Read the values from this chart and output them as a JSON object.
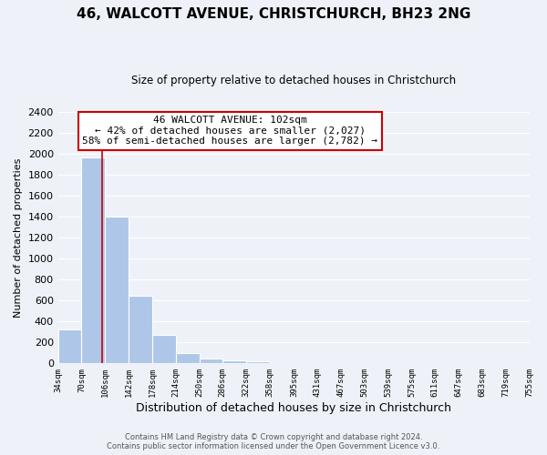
{
  "title": "46, WALCOTT AVENUE, CHRISTCHURCH, BH23 2NG",
  "subtitle": "Size of property relative to detached houses in Christchurch",
  "xlabel": "Distribution of detached houses by size in Christchurch",
  "ylabel": "Number of detached properties",
  "bar_edges": [
    34,
    70,
    106,
    142,
    178,
    214,
    250,
    286,
    322,
    358,
    395,
    431,
    467,
    503,
    539,
    575,
    611,
    647,
    683,
    719,
    755
  ],
  "bar_heights": [
    320,
    1970,
    1400,
    650,
    275,
    100,
    45,
    30,
    20,
    0,
    0,
    0,
    0,
    0,
    0,
    0,
    0,
    0,
    0,
    0
  ],
  "bar_color": "#aec6e8",
  "property_line_x": 102,
  "property_line_color": "#cc0000",
  "annotation_line1": "46 WALCOTT AVENUE: 102sqm",
  "annotation_line2": "← 42% of detached houses are smaller (2,027)",
  "annotation_line3": "58% of semi-detached houses are larger (2,782) →",
  "annotation_box_color": "white",
  "annotation_box_edge": "#cc0000",
  "ylim": [
    0,
    2400
  ],
  "yticks": [
    0,
    200,
    400,
    600,
    800,
    1000,
    1200,
    1400,
    1600,
    1800,
    2000,
    2200,
    2400
  ],
  "xtick_labels": [
    "34sqm",
    "70sqm",
    "106sqm",
    "142sqm",
    "178sqm",
    "214sqm",
    "250sqm",
    "286sqm",
    "322sqm",
    "358sqm",
    "395sqm",
    "431sqm",
    "467sqm",
    "503sqm",
    "539sqm",
    "575sqm",
    "611sqm",
    "647sqm",
    "683sqm",
    "719sqm",
    "755sqm"
  ],
  "footer_line1": "Contains HM Land Registry data © Crown copyright and database right 2024.",
  "footer_line2": "Contains public sector information licensed under the Open Government Licence v3.0.",
  "background_color": "#eef2f8",
  "plot_bg_color": "#eef2f8",
  "grid_color": "white"
}
